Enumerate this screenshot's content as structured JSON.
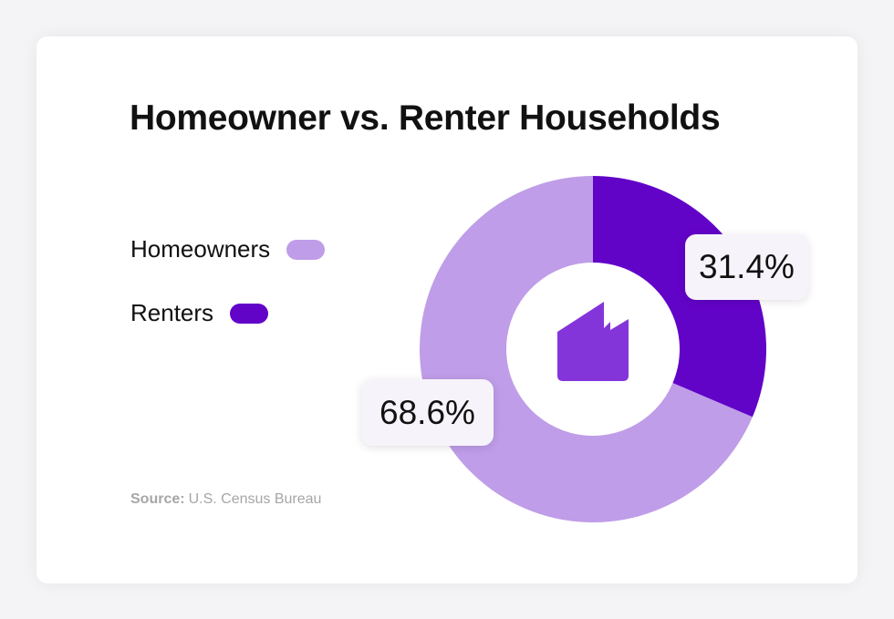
{
  "chart_data": {
    "type": "pie",
    "title": "Homeowner vs. Renter Households",
    "slices": [
      {
        "label": "Homeowners",
        "value": 68.6,
        "value_label": "68.6%",
        "color": "#bf9de8"
      },
      {
        "label": "Renters",
        "value": 31.4,
        "value_label": "31.4%",
        "color": "#6203c8"
      }
    ],
    "center_icon": "house-icon",
    "center_icon_color": "#8435d9",
    "legend_placement": "left"
  },
  "source": {
    "label": "Source:",
    "text": "U.S. Census Bureau"
  }
}
